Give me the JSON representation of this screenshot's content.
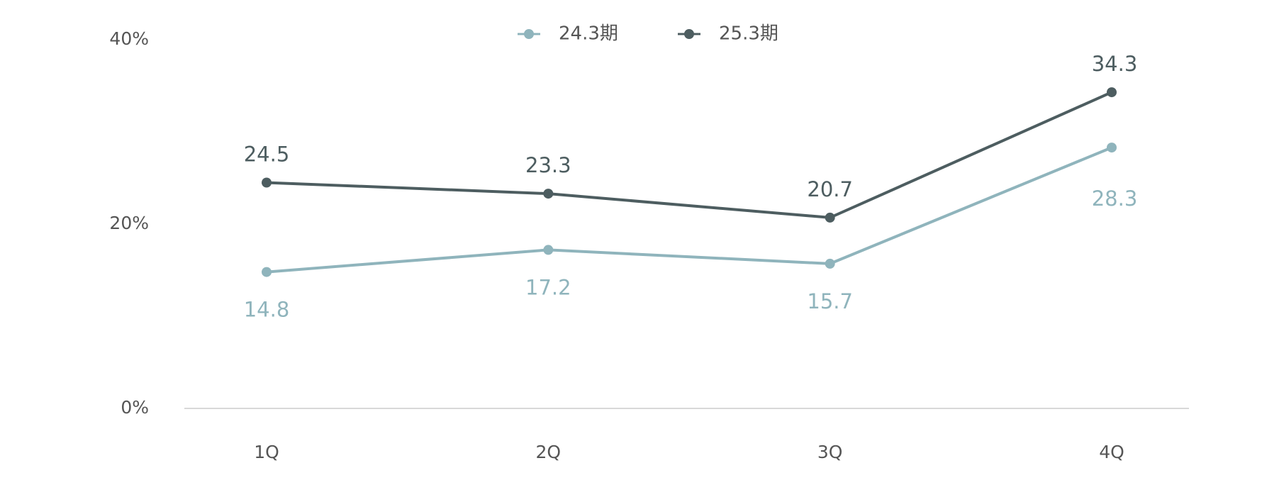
{
  "chart_data": {
    "type": "line",
    "categories": [
      "1Q",
      "2Q",
      "3Q",
      "4Q"
    ],
    "series": [
      {
        "name": "24.3期",
        "color": "#8fb4bc",
        "values": [
          14.8,
          17.2,
          15.7,
          28.3
        ]
      },
      {
        "name": "25.3期",
        "color": "#4d5d60",
        "values": [
          24.5,
          23.3,
          20.7,
          34.3
        ]
      }
    ],
    "ylim": [
      0,
      40
    ],
    "yticks": [
      {
        "value": 0,
        "label": "0%"
      },
      {
        "value": 20,
        "label": "20%"
      },
      {
        "value": 40,
        "label": "40%"
      }
    ],
    "grid": false,
    "legend": "top"
  }
}
